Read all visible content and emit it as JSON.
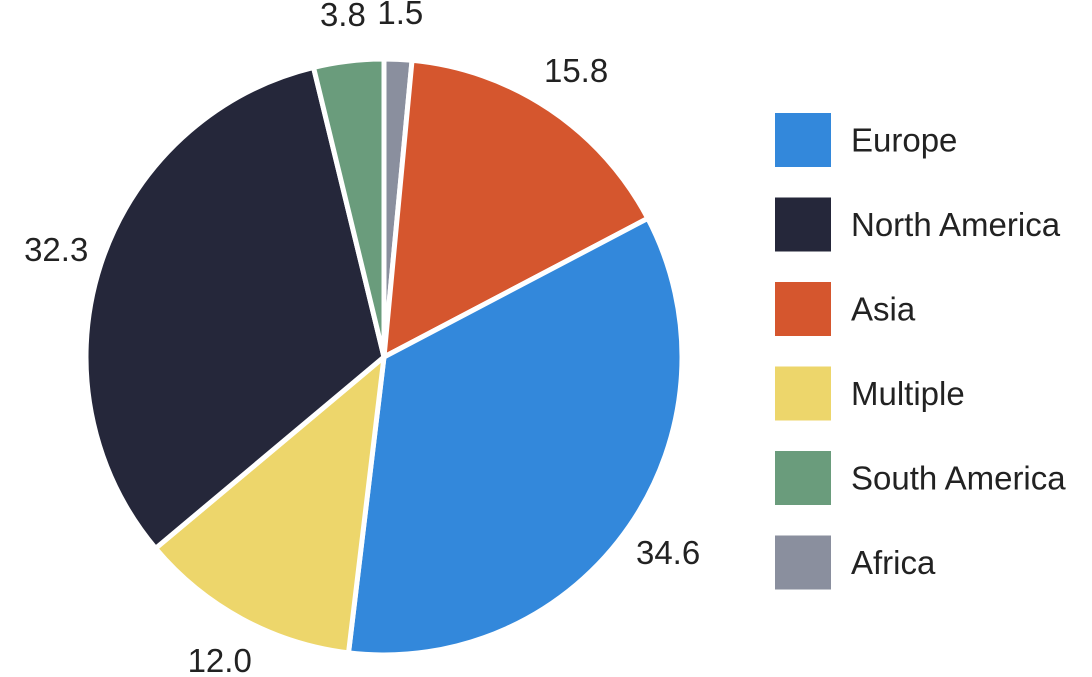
{
  "chart_data": {
    "type": "pie",
    "title": "",
    "legend": "right",
    "slices": [
      {
        "name": "Africa",
        "value": 1.5,
        "label": "1.5",
        "color": "#8A8F9E"
      },
      {
        "name": "Asia",
        "value": 15.8,
        "label": "15.8",
        "color": "#D5562E"
      },
      {
        "name": "Europe",
        "value": 34.6,
        "label": "34.6",
        "color": "#3388DB"
      },
      {
        "name": "Multiple",
        "value": 12.0,
        "label": "12.0",
        "color": "#EDD66B"
      },
      {
        "name": "North America",
        "value": 32.3,
        "label": "32.3",
        "color": "#25273A"
      },
      {
        "name": "South America",
        "value": 3.8,
        "label": "3.8",
        "color": "#6A9C7C"
      }
    ],
    "legend_order": [
      "Europe",
      "North America",
      "Asia",
      "Multiple",
      "South America",
      "Africa"
    ]
  }
}
